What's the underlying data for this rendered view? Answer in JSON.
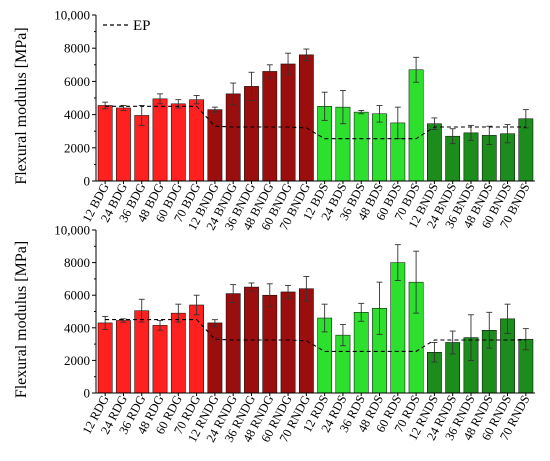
{
  "colors": {
    "red": "#ff2020",
    "dark_red": "#9b0e0e",
    "light_green": "#2ee02e",
    "dark_green": "#1c8c1c",
    "axis": "#000000",
    "ep_line": "#000000"
  },
  "chart_data": [
    {
      "type": "bar",
      "ylabel": "Flexural modulus [MPa]",
      "ylim": [
        0,
        10000
      ],
      "yticks": [
        "0",
        "2000",
        "4000",
        "6000",
        "8000",
        "10,000"
      ],
      "legend": {
        "label": "EP",
        "style": "dashed",
        "placement": "top-left"
      },
      "categories": [
        "12 BDG",
        "24 BDG",
        "36 BDG",
        "48 BDG",
        "60 BDG",
        "70 BDG",
        "12 BNDG",
        "24 BNDG",
        "36 BNDG",
        "48 BNDG",
        "60 BNDG",
        "70 BNDG",
        "12 BDS",
        "24 BDS",
        "36 BDS",
        "48 BDS",
        "60 BDS",
        "70 BDS",
        "12 BNDS",
        "24 BNDS",
        "36 BNDS",
        "48 BNDS",
        "60 BNDS",
        "70 BNDS"
      ],
      "values": [
        4550,
        4400,
        3950,
        4950,
        4650,
        4900,
        4300,
        5250,
        5700,
        6600,
        7050,
        7600,
        4500,
        4450,
        4150,
        4050,
        3500,
        6700,
        3450,
        2700,
        2900,
        2750,
        2850,
        3750
      ],
      "errors": [
        200,
        150,
        600,
        300,
        250,
        250,
        150,
        650,
        850,
        400,
        650,
        350,
        850,
        1000,
        100,
        500,
        950,
        750,
        350,
        450,
        450,
        550,
        550,
        550
      ],
      "groups": [
        {
          "color": "red",
          "count": 6
        },
        {
          "color": "dark_red",
          "count": 6
        },
        {
          "color": "light_green",
          "count": 6
        },
        {
          "color": "dark_green",
          "count": 6
        }
      ],
      "ep_line": [
        4500,
        4500,
        4500,
        4500,
        4500,
        4500,
        3300,
        3250,
        3250,
        3250,
        3250,
        3200,
        2550,
        2550,
        2550,
        2550,
        2550,
        2550,
        3250,
        3250,
        3250,
        3250,
        3250,
        3250
      ]
    },
    {
      "type": "bar",
      "ylabel": "Flexural modulus [MPa]",
      "ylim": [
        0,
        10000
      ],
      "yticks": [
        "0",
        "2000",
        "4000",
        "6000",
        "8000",
        "10,000"
      ],
      "categories": [
        "12 RDG",
        "24 RDG",
        "36 RDG",
        "48 RDG",
        "60 RDG",
        "70 RDG",
        "12 RNDG",
        "24 RNDG",
        "36 RNDG",
        "48 RNDG",
        "60 RNDG",
        "70 RNDG",
        "12 RDS",
        "24 RDS",
        "36 RDS",
        "48 RDS",
        "60 RDS",
        "70 RDS",
        "12 RNDS",
        "24 RNDS",
        "36 RNDS",
        "48 RNDS",
        "60 RNDS",
        "70 RNDS"
      ],
      "values": [
        4300,
        4450,
        5050,
        4150,
        4900,
        5400,
        4300,
        6100,
        6500,
        6000,
        6200,
        6400,
        4600,
        3550,
        4950,
        5200,
        8000,
        6800,
        2500,
        3100,
        3400,
        3850,
        4550,
        3300
      ],
      "errors": [
        400,
        100,
        700,
        300,
        550,
        600,
        200,
        550,
        250,
        700,
        400,
        750,
        850,
        650,
        550,
        1600,
        1100,
        1900,
        600,
        700,
        1400,
        1100,
        900,
        650
      ],
      "groups": [
        {
          "color": "red",
          "count": 6
        },
        {
          "color": "dark_red",
          "count": 6
        },
        {
          "color": "light_green",
          "count": 6
        },
        {
          "color": "dark_green",
          "count": 6
        }
      ],
      "ep_line": [
        4500,
        4500,
        4500,
        4500,
        4500,
        4500,
        3300,
        3250,
        3250,
        3250,
        3250,
        3200,
        2550,
        2550,
        2550,
        2550,
        2550,
        2550,
        3250,
        3250,
        3250,
        3250,
        3250,
        3250
      ]
    }
  ]
}
